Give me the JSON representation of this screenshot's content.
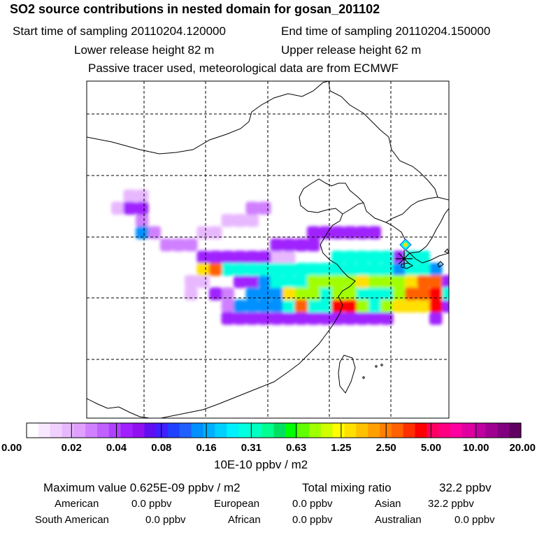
{
  "header": {
    "title": "SO2 source contributions in nested domain for gosan_201102",
    "start_label": "Start time of sampling 20110204.120000",
    "end_label": "End time of sampling 20110204.150000",
    "lower_label": "Lower release height   82 m",
    "upper_label": "Upper release height   62 m",
    "note": "Passive tracer used, meteorological data are from ECMWF"
  },
  "colorbar": {
    "tick_labels": [
      "0.00",
      "0.02",
      "0.04",
      "0.08",
      "0.16",
      "0.31",
      "0.63",
      "1.25",
      "2.50",
      "5.00",
      "10.00",
      "20.00"
    ],
    "unit": "10E-10 ppbv / m2",
    "colors": [
      "#ffffff",
      "#f8e8ff",
      "#f0d0ff",
      "#e8b8ff",
      "#e0a0ff",
      "#d080ff",
      "#c060ff",
      "#b040ff",
      "#a020ff",
      "#9010f0",
      "#6010f0",
      "#4020ff",
      "#2040ff",
      "#2060ff",
      "#0090ff",
      "#00b0ff",
      "#00d0ff",
      "#00f0ff",
      "#00ffe0",
      "#00ffc0",
      "#00ff90",
      "#00e060",
      "#00ff00",
      "#60ff00",
      "#a0ff00",
      "#d0ff00",
      "#ffff00",
      "#ffe000",
      "#ffc000",
      "#ffa000",
      "#ff8000",
      "#ff6000",
      "#ff3000",
      "#ff0000",
      "#ff0060",
      "#ff0080",
      "#ff00a0",
      "#e000a0",
      "#c000a0",
      "#a00090",
      "#800080",
      "#600060"
    ]
  },
  "summary": {
    "max_label": "Maximum value  0.625E-09 ppbv / m2",
    "total_label": "Total mixing ratio",
    "total_value": "32.2 ppbv"
  },
  "sources": [
    {
      "name": "American",
      "value": "0.0 ppbv"
    },
    {
      "name": "European",
      "value": "0.0 ppbv"
    },
    {
      "name": "Asian",
      "value": "32.2 ppbv"
    },
    {
      "name": "South American",
      "value": "0.0 ppbv"
    },
    {
      "name": "African",
      "value": "0.0 ppbv"
    },
    {
      "name": "Australian",
      "value": "0.0 ppbv"
    }
  ],
  "plumes": [
    {
      "lvl": 1,
      "cells": [
        [
          2,
          15
        ],
        [
          3,
          14
        ],
        [
          4,
          14
        ],
        [
          8,
          21
        ],
        [
          8,
          22
        ],
        [
          9,
          21
        ],
        [
          11,
          16
        ],
        [
          12,
          16
        ],
        [
          13,
          16
        ],
        [
          15,
          19
        ],
        [
          16,
          19
        ],
        [
          9,
          17
        ],
        [
          10,
          17
        ]
      ]
    },
    {
      "lvl": 2,
      "cells": [
        [
          6,
          18
        ],
        [
          7,
          18
        ],
        [
          8,
          18
        ],
        [
          12,
          23
        ],
        [
          13,
          23
        ],
        [
          20,
          22
        ],
        [
          21,
          22
        ],
        [
          22,
          22
        ],
        [
          4,
          16
        ],
        [
          5,
          17
        ],
        [
          13,
          15
        ],
        [
          14,
          15
        ],
        [
          11,
          22
        ],
        [
          11,
          23
        ]
      ]
    },
    {
      "lvl": 3,
      "cells": [
        [
          3,
          15
        ],
        [
          4,
          15
        ],
        [
          9,
          19
        ],
        [
          10,
          19
        ],
        [
          11,
          19
        ],
        [
          12,
          19
        ],
        [
          13,
          19
        ],
        [
          14,
          19
        ],
        [
          15,
          18
        ],
        [
          16,
          18
        ],
        [
          17,
          18
        ],
        [
          18,
          18
        ],
        [
          9,
          20
        ],
        [
          10,
          20
        ],
        [
          11,
          20
        ],
        [
          12,
          20
        ],
        [
          13,
          20
        ],
        [
          14,
          20
        ],
        [
          15,
          20
        ],
        [
          16,
          20
        ],
        [
          17,
          20
        ],
        [
          18,
          20
        ],
        [
          19,
          20
        ],
        [
          20,
          20
        ],
        [
          21,
          20
        ],
        [
          22,
          20
        ],
        [
          12,
          21
        ],
        [
          13,
          21
        ],
        [
          14,
          21
        ],
        [
          15,
          21
        ],
        [
          16,
          21
        ],
        [
          17,
          21
        ],
        [
          18,
          21
        ],
        [
          19,
          21
        ],
        [
          20,
          21
        ],
        [
          21,
          21
        ],
        [
          22,
          21
        ],
        [
          23,
          21
        ],
        [
          10,
          22
        ],
        [
          11,
          24
        ],
        [
          12,
          24
        ],
        [
          13,
          24
        ],
        [
          14,
          24
        ],
        [
          15,
          24
        ],
        [
          16,
          24
        ],
        [
          17,
          24
        ],
        [
          18,
          24
        ],
        [
          19,
          24
        ],
        [
          20,
          24
        ],
        [
          21,
          24
        ],
        [
          22,
          24
        ],
        [
          23,
          24
        ],
        [
          24,
          24
        ],
        [
          18,
          17
        ],
        [
          19,
          17
        ],
        [
          20,
          17
        ],
        [
          21,
          17
        ],
        [
          22,
          17
        ],
        [
          23,
          17
        ],
        [
          24,
          19
        ],
        [
          25,
          19
        ],
        [
          26,
          19
        ],
        [
          27,
          19
        ],
        [
          28,
          20
        ],
        [
          29,
          21
        ],
        [
          29,
          22
        ],
        [
          29,
          23
        ],
        [
          28,
          24
        ]
      ]
    },
    {
      "lvl": 4,
      "cells": [
        [
          4,
          17
        ],
        [
          13,
          22
        ],
        [
          14,
          22
        ],
        [
          15,
          22
        ],
        [
          16,
          22
        ],
        [
          17,
          22
        ],
        [
          18,
          22
        ],
        [
          19,
          22
        ],
        [
          20,
          22
        ],
        [
          21,
          22
        ],
        [
          22,
          22
        ],
        [
          23,
          22
        ],
        [
          24,
          22
        ],
        [
          25,
          22
        ],
        [
          26,
          22
        ],
        [
          27,
          22
        ],
        [
          28,
          22
        ],
        [
          12,
          23
        ],
        [
          13,
          23
        ],
        [
          14,
          23
        ],
        [
          15,
          23
        ],
        [
          16,
          23
        ],
        [
          17,
          23
        ],
        [
          18,
          23
        ],
        [
          19,
          23
        ],
        [
          20,
          23
        ],
        [
          21,
          23
        ],
        [
          22,
          23
        ],
        [
          23,
          23
        ],
        [
          24,
          23
        ],
        [
          25,
          23
        ],
        [
          26,
          23
        ],
        [
          27,
          23
        ],
        [
          28,
          23
        ],
        [
          14,
          21
        ],
        [
          15,
          21
        ],
        [
          16,
          21
        ],
        [
          17,
          21
        ],
        [
          18,
          21
        ],
        [
          19,
          21
        ],
        [
          20,
          21
        ],
        [
          21,
          21
        ],
        [
          22,
          21
        ],
        [
          23,
          21
        ],
        [
          24,
          21
        ],
        [
          25,
          21
        ],
        [
          26,
          21
        ],
        [
          27,
          21
        ],
        [
          28,
          21
        ],
        [
          25,
          20
        ],
        [
          26,
          20
        ],
        [
          27,
          20
        ],
        [
          28,
          20
        ]
      ]
    },
    {
      "lvl": 5,
      "cells": [
        [
          9,
          20
        ],
        [
          10,
          20
        ],
        [
          11,
          20
        ],
        [
          12,
          20
        ],
        [
          13,
          20
        ],
        [
          14,
          20
        ],
        [
          15,
          20
        ],
        [
          16,
          20
        ],
        [
          17,
          20
        ],
        [
          18,
          20
        ],
        [
          19,
          20
        ],
        [
          20,
          20
        ],
        [
          21,
          20
        ],
        [
          22,
          20
        ],
        [
          23,
          20
        ],
        [
          24,
          20
        ],
        [
          15,
          21
        ],
        [
          16,
          21
        ],
        [
          17,
          21
        ],
        [
          18,
          21
        ],
        [
          19,
          21
        ],
        [
          20,
          21
        ],
        [
          21,
          21
        ],
        [
          22,
          21
        ],
        [
          23,
          21
        ],
        [
          24,
          21
        ],
        [
          16,
          22
        ],
        [
          17,
          22
        ],
        [
          18,
          22
        ],
        [
          19,
          22
        ],
        [
          20,
          22
        ],
        [
          21,
          22
        ],
        [
          22,
          22
        ],
        [
          23,
          22
        ],
        [
          24,
          22
        ],
        [
          16,
          23
        ],
        [
          17,
          23
        ],
        [
          18,
          23
        ],
        [
          19,
          23
        ],
        [
          20,
          23
        ],
        [
          21,
          23
        ],
        [
          22,
          23
        ],
        [
          23,
          23
        ],
        [
          24,
          23
        ],
        [
          20,
          19
        ],
        [
          21,
          19
        ],
        [
          22,
          19
        ],
        [
          23,
          19
        ],
        [
          24,
          19
        ],
        [
          26,
          19
        ],
        [
          27,
          19
        ],
        [
          26,
          20
        ],
        [
          27,
          20
        ],
        [
          28,
          21
        ],
        [
          29,
          22
        ],
        [
          27,
          23
        ],
        [
          28,
          23
        ]
      ]
    },
    {
      "lvl": 6,
      "cells": [
        [
          16,
          22
        ],
        [
          17,
          22
        ],
        [
          18,
          22
        ],
        [
          20,
          21
        ],
        [
          21,
          21
        ],
        [
          22,
          21
        ],
        [
          23,
          21
        ],
        [
          24,
          21
        ],
        [
          25,
          21
        ],
        [
          26,
          21
        ],
        [
          27,
          21
        ],
        [
          27,
          22
        ],
        [
          28,
          22
        ],
        [
          26,
          23
        ],
        [
          27,
          23
        ],
        [
          25,
          22
        ],
        [
          26,
          22
        ],
        [
          24,
          23
        ],
        [
          25,
          23
        ],
        [
          18,
          21
        ],
        [
          19,
          21
        ],
        [
          20,
          22
        ],
        [
          21,
          22
        ],
        [
          20,
          23
        ],
        [
          21,
          23
        ],
        [
          22,
          23
        ]
      ]
    },
    {
      "lvl": 7,
      "cells": [
        [
          9,
          20
        ],
        [
          10,
          20
        ],
        [
          16,
          22
        ],
        [
          17,
          23
        ],
        [
          22,
          21
        ],
        [
          26,
          21
        ],
        [
          27,
          21
        ],
        [
          28,
          21
        ],
        [
          27,
          22
        ],
        [
          28,
          22
        ],
        [
          25,
          23
        ],
        [
          26,
          23
        ],
        [
          27,
          23
        ],
        [
          26,
          22
        ],
        [
          20,
          23
        ],
        [
          21,
          23
        ]
      ]
    },
    {
      "lvl": 8,
      "cells": [
        [
          10,
          20
        ],
        [
          17,
          23
        ],
        [
          27,
          22
        ],
        [
          28,
          22
        ],
        [
          27,
          21
        ],
        [
          28,
          21
        ],
        [
          26,
          22
        ]
      ]
    },
    {
      "lvl": 9,
      "cells": [
        [
          20,
          23
        ],
        [
          21,
          23
        ],
        [
          28,
          22
        ],
        [
          28,
          23
        ]
      ]
    }
  ]
}
